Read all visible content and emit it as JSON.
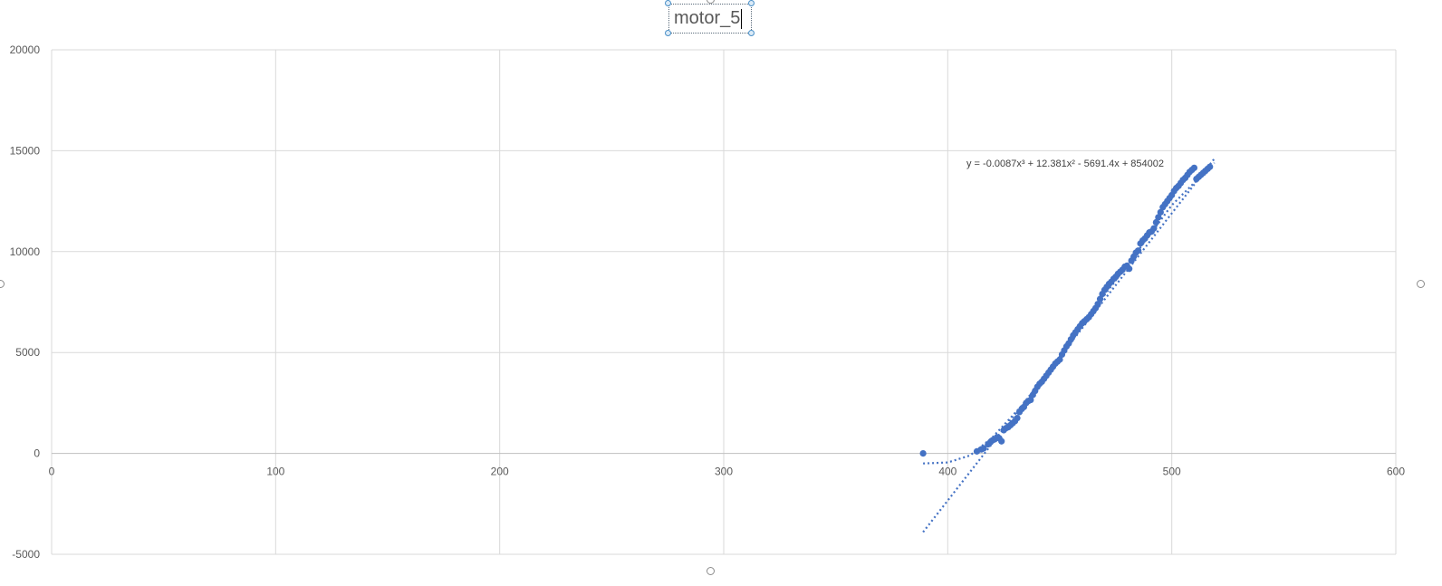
{
  "chart_data": {
    "type": "scatter",
    "title": "motor_5",
    "xlabel": "",
    "ylabel": "",
    "xlim": [
      0,
      600
    ],
    "ylim": [
      -5000,
      20000
    ],
    "x_ticks": [
      0,
      100,
      200,
      300,
      400,
      500,
      600
    ],
    "y_ticks": [
      -5000,
      0,
      5000,
      10000,
      15000,
      20000
    ],
    "grid": true,
    "legend": "none",
    "colors": {
      "marker": "#4472c4",
      "gridline": "#d9d9d9",
      "axis": "#bfbfbf",
      "tick_text": "#595959"
    },
    "series": [
      {
        "points": [
          [
            389,
            0
          ],
          [
            413,
            100
          ],
          [
            415,
            200
          ],
          [
            416,
            250
          ],
          [
            418,
            450
          ],
          [
            419,
            550
          ],
          [
            420,
            650
          ],
          [
            421,
            700
          ],
          [
            422,
            800
          ],
          [
            423,
            750
          ],
          [
            424,
            600
          ],
          [
            425,
            1150
          ],
          [
            426,
            1250
          ],
          [
            427,
            1300
          ],
          [
            428,
            1400
          ],
          [
            429,
            1500
          ],
          [
            430,
            1600
          ],
          [
            431,
            1750
          ],
          [
            432,
            2050
          ],
          [
            433,
            2200
          ],
          [
            434,
            2300
          ],
          [
            435,
            2500
          ],
          [
            436,
            2600
          ],
          [
            437,
            2650
          ],
          [
            438,
            2900
          ],
          [
            439,
            3100
          ],
          [
            440,
            3300
          ],
          [
            441,
            3450
          ],
          [
            442,
            3550
          ],
          [
            443,
            3700
          ],
          [
            444,
            3850
          ],
          [
            445,
            4000
          ],
          [
            446,
            4150
          ],
          [
            447,
            4300
          ],
          [
            448,
            4450
          ],
          [
            449,
            4550
          ],
          [
            450,
            4650
          ],
          [
            451,
            4900
          ],
          [
            452,
            5100
          ],
          [
            453,
            5300
          ],
          [
            454,
            5450
          ],
          [
            455,
            5650
          ],
          [
            456,
            5850
          ],
          [
            457,
            6000
          ],
          [
            458,
            6150
          ],
          [
            459,
            6300
          ],
          [
            460,
            6450
          ],
          [
            461,
            6550
          ],
          [
            462,
            6650
          ],
          [
            463,
            6750
          ],
          [
            464,
            6900
          ],
          [
            465,
            7050
          ],
          [
            466,
            7200
          ],
          [
            467,
            7400
          ],
          [
            468,
            7650
          ],
          [
            469,
            7900
          ],
          [
            470,
            8100
          ],
          [
            471,
            8250
          ],
          [
            472,
            8400
          ],
          [
            473,
            8500
          ],
          [
            474,
            8650
          ],
          [
            475,
            8750
          ],
          [
            476,
            8900
          ],
          [
            477,
            9000
          ],
          [
            478,
            9100
          ],
          [
            479,
            9250
          ],
          [
            480,
            9300
          ],
          [
            481,
            9150
          ],
          [
            482,
            9550
          ],
          [
            483,
            9750
          ],
          [
            484,
            9950
          ],
          [
            485,
            10050
          ],
          [
            486,
            10400
          ],
          [
            487,
            10550
          ],
          [
            488,
            10650
          ],
          [
            489,
            10800
          ],
          [
            490,
            10950
          ],
          [
            491,
            11000
          ],
          [
            492,
            11150
          ],
          [
            493,
            11450
          ],
          [
            494,
            11700
          ],
          [
            495,
            11950
          ],
          [
            496,
            12200
          ],
          [
            497,
            12350
          ],
          [
            498,
            12500
          ],
          [
            499,
            12650
          ],
          [
            500,
            12800
          ],
          [
            501,
            13000
          ],
          [
            502,
            13150
          ],
          [
            503,
            13250
          ],
          [
            504,
            13400
          ],
          [
            505,
            13550
          ],
          [
            506,
            13650
          ],
          [
            507,
            13800
          ],
          [
            508,
            13950
          ],
          [
            509,
            14050
          ],
          [
            510,
            14150
          ],
          [
            511,
            13600
          ],
          [
            512,
            13700
          ],
          [
            513,
            13800
          ],
          [
            514,
            13900
          ],
          [
            515,
            14000
          ],
          [
            516,
            14100
          ],
          [
            517,
            14200
          ]
        ]
      }
    ],
    "trendlines": [
      {
        "type": "polynomial",
        "order": 3,
        "equation": "y = -0.0087x³ + 12.381x² - 5691.4x + 854002",
        "x_range": [
          389,
          519
        ]
      },
      {
        "type": "linear",
        "x_range": [
          389,
          519
        ],
        "start": [
          389,
          -3900
        ],
        "end": [
          519,
          14600
        ]
      }
    ]
  }
}
